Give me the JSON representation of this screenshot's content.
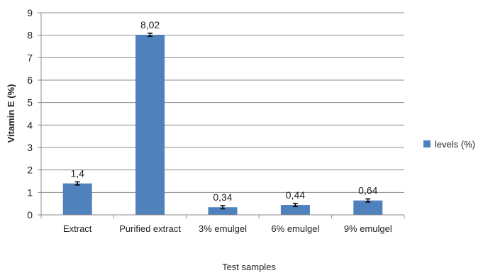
{
  "chart_data": {
    "type": "bar",
    "title": "",
    "xlabel": "Test samples",
    "ylabel": "Vitamin E (%)",
    "ylim": [
      0,
      9
    ],
    "yticks": [
      0,
      1,
      2,
      3,
      4,
      5,
      6,
      7,
      8,
      9
    ],
    "grid": true,
    "legend_position": "right",
    "categories": [
      "Extract",
      "Purified extract",
      "3% emulgel",
      "6% emulgel",
      "9% emulgel"
    ],
    "series": [
      {
        "name": "levels (%)",
        "color": "#4f81bd",
        "values": [
          1.4,
          8.02,
          0.34,
          0.44,
          0.64
        ],
        "value_labels": [
          "1,4",
          "8,02",
          "0,34",
          "0,44",
          "0,64"
        ],
        "error": [
          0.07,
          0.07,
          0.07,
          0.07,
          0.07
        ]
      }
    ]
  }
}
